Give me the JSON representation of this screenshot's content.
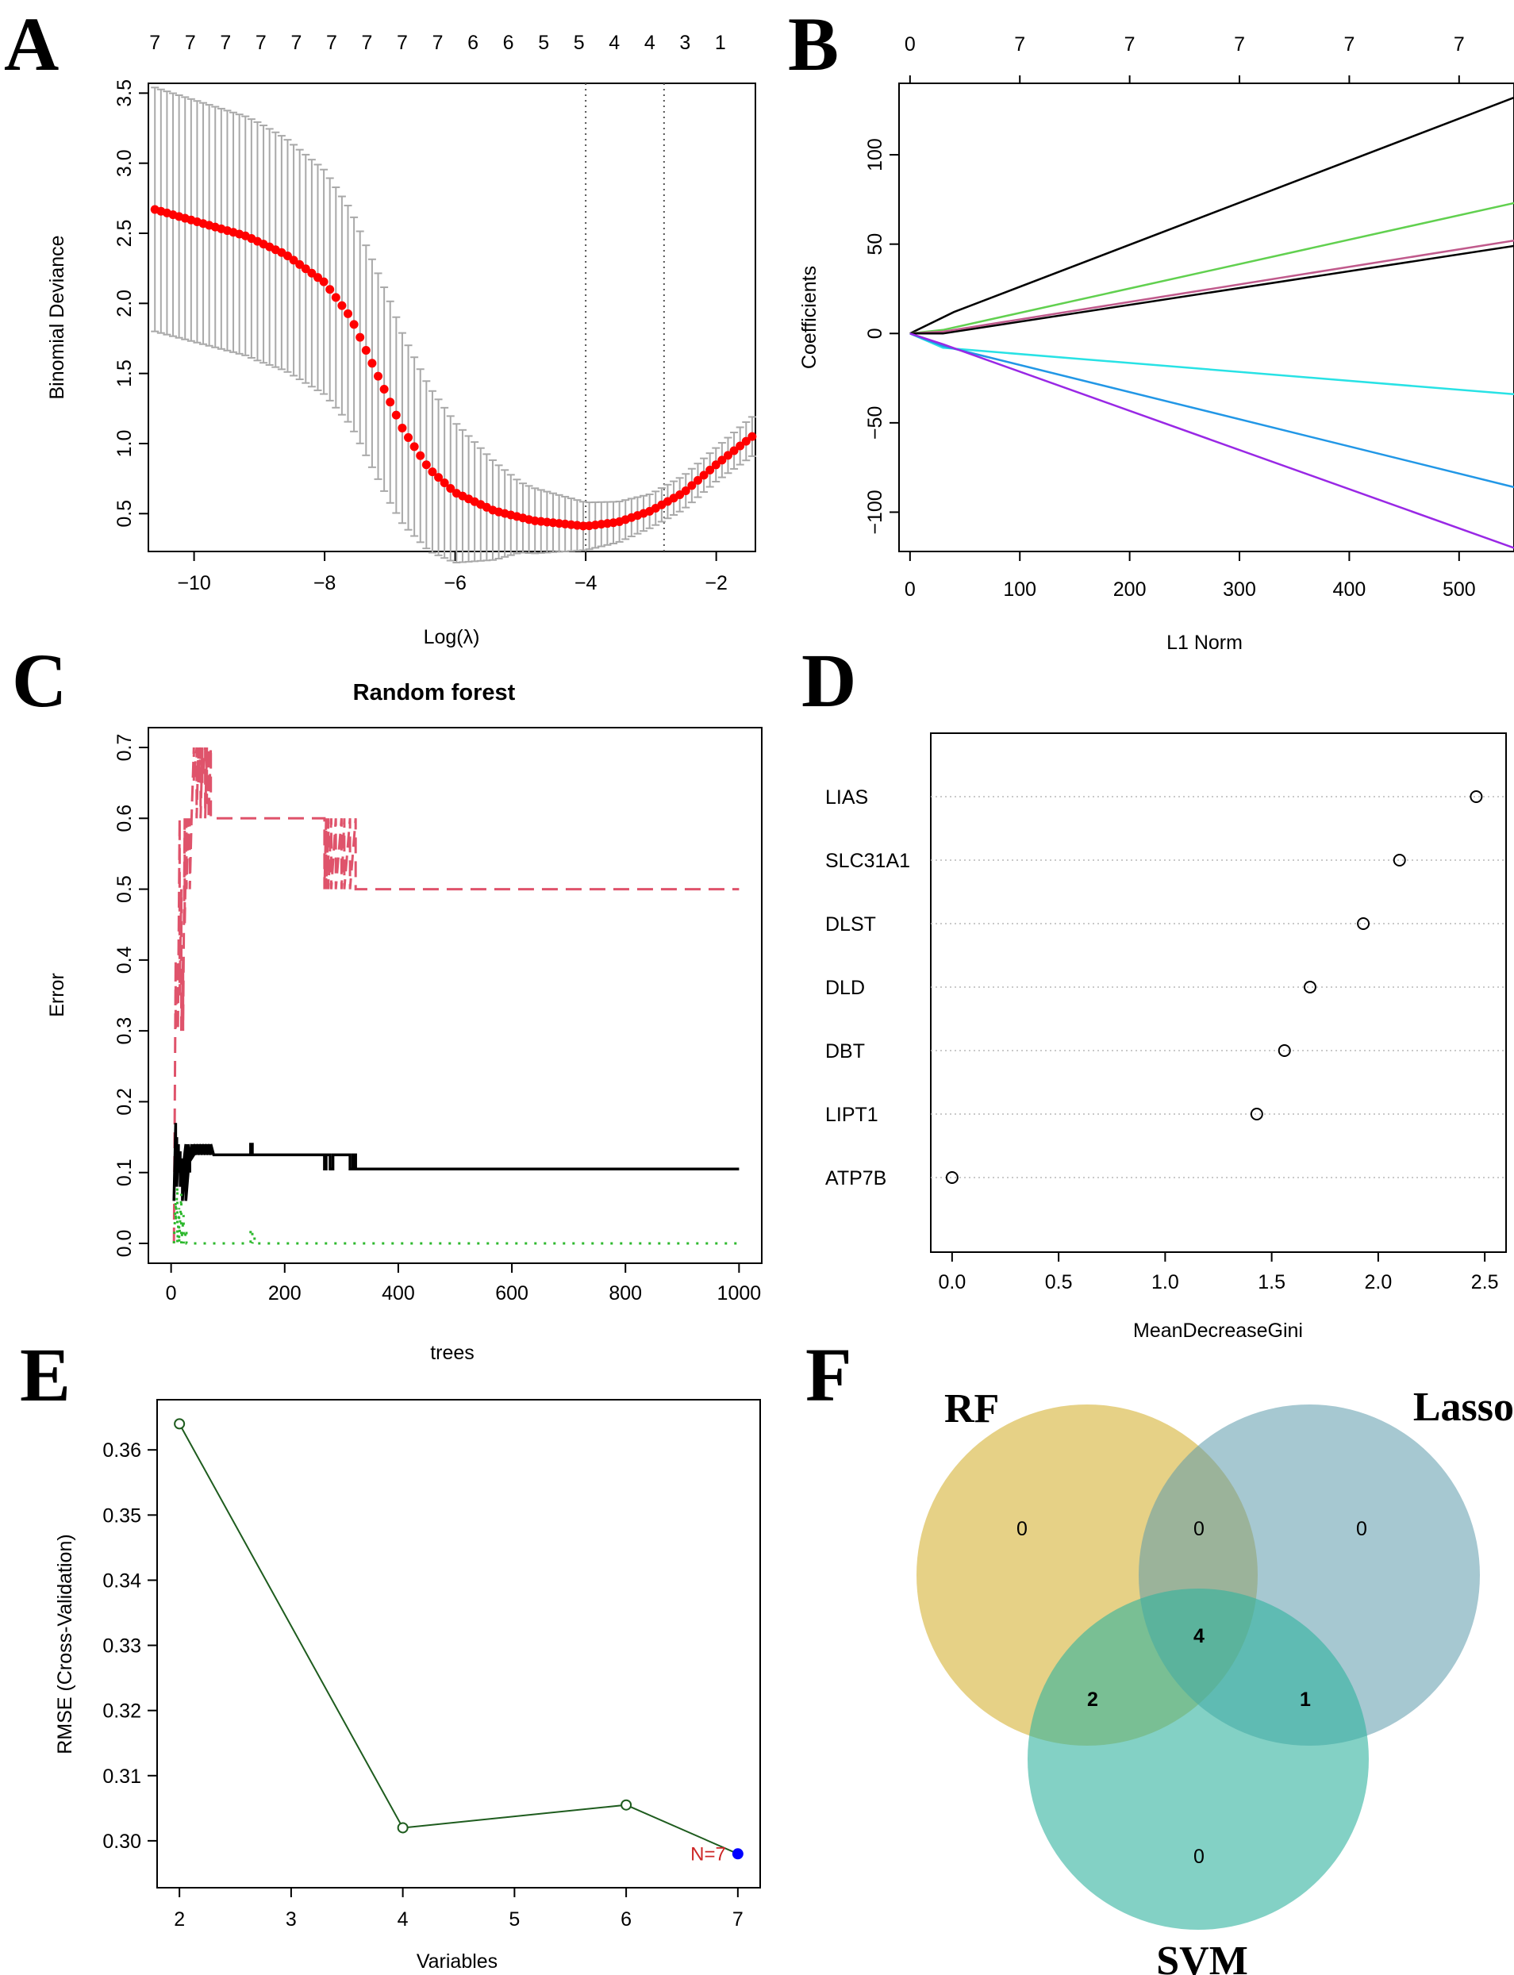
{
  "panel_labels": [
    "A",
    "B",
    "C",
    "D",
    "E",
    "F"
  ],
  "chart_data": [
    {
      "id": "A",
      "type": "scatter",
      "xlabel": "Log(λ)",
      "ylabel": "Binomial Deviance",
      "xlim": [
        -10.7,
        -1.4
      ],
      "ylim": [
        0.23,
        3.57
      ],
      "xticks": [
        -10,
        -8,
        -6,
        -4,
        -2
      ],
      "yticks": [
        0.5,
        1.0,
        1.5,
        2.0,
        2.5,
        3.0,
        3.5
      ],
      "xtick_labels": [
        "−10",
        "−8",
        "−6",
        "−4",
        "−2"
      ],
      "ytick_labels": [
        "0.5",
        "1.0",
        "1.5",
        "2.0",
        "2.5",
        "3.0",
        "3.5"
      ],
      "top_counts": [
        "7",
        "7",
        "7",
        "7",
        "7",
        "7",
        "7",
        "7",
        "7",
        "6",
        "6",
        "5",
        "5",
        "4",
        "4",
        "3",
        "1"
      ],
      "lambda_min": -4.0,
      "lambda_1se": -2.8,
      "x_range": [
        -10.6,
        -1.45
      ],
      "n_points": 100,
      "curve_knots": {
        "x": [
          -10.6,
          -9.2,
          -8.6,
          -8.0,
          -7.6,
          -7.2,
          -6.8,
          -6.4,
          -6.0,
          -5.4,
          -4.8,
          -4.0,
          -3.5,
          -3.0,
          -2.5,
          -2.0,
          -1.45
        ],
        "y": [
          2.67,
          2.48,
          2.35,
          2.15,
          1.9,
          1.5,
          1.1,
          0.82,
          0.65,
          0.52,
          0.45,
          0.41,
          0.44,
          0.52,
          0.65,
          0.85,
          1.05
        ]
      },
      "error_halfwidth_knots": {
        "x": [
          -10.6,
          -9.0,
          -8.0,
          -7.0,
          -6.0,
          -5.0,
          -4.0,
          -3.0,
          -2.0,
          -1.45
        ],
        "y": [
          0.87,
          0.85,
          0.8,
          0.72,
          0.5,
          0.25,
          0.17,
          0.12,
          0.12,
          0.14
        ]
      },
      "colors": {
        "points": "#ff0000",
        "errorbars": "#a9a9a9",
        "vlines": "#555555"
      }
    },
    {
      "id": "B",
      "type": "line",
      "xlabel": "L1 Norm",
      "ylabel": "Coefficients",
      "xlim": [
        -10,
        550
      ],
      "ylim": [
        -122,
        140
      ],
      "xticks": [
        0,
        100,
        200,
        300,
        400,
        500
      ],
      "yticks": [
        -100,
        -50,
        0,
        50,
        100
      ],
      "xtick_labels": [
        "0",
        "100",
        "200",
        "300",
        "400",
        "500"
      ],
      "ytick_labels": [
        "−100",
        "−50",
        "0",
        "50",
        "100"
      ],
      "top_ticks": [
        0,
        100,
        200,
        300,
        400,
        500
      ],
      "top_labels": [
        "0",
        "7",
        "7",
        "7",
        "7",
        "7"
      ],
      "series": [
        {
          "name": "black-upper",
          "color": "#000000",
          "x": [
            0,
            40,
            550
          ],
          "y": [
            0,
            12,
            132
          ]
        },
        {
          "name": "green",
          "color": "#61d04f",
          "x": [
            0,
            30,
            550
          ],
          "y": [
            0,
            2,
            73
          ]
        },
        {
          "name": "magenta",
          "color": "#c05a8c",
          "x": [
            0,
            30,
            550
          ],
          "y": [
            0,
            1,
            52
          ]
        },
        {
          "name": "black-lower",
          "color": "#000000",
          "x": [
            0,
            30,
            550
          ],
          "y": [
            0,
            0,
            49
          ]
        },
        {
          "name": "cyan",
          "color": "#28e2e5",
          "x": [
            0,
            30,
            550
          ],
          "y": [
            0,
            -8,
            -34
          ]
        },
        {
          "name": "blue",
          "color": "#2297e6",
          "x": [
            0,
            30,
            550
          ],
          "y": [
            0,
            -7,
            -86
          ]
        },
        {
          "name": "purple",
          "color": "#9928e5",
          "x": [
            0,
            30,
            550
          ],
          "y": [
            0,
            -6,
            -120
          ]
        }
      ]
    },
    {
      "id": "C",
      "type": "line",
      "title": "Random forest",
      "xlabel": "trees",
      "ylabel": "Error",
      "xlim": [
        -40,
        1040
      ],
      "ylim": [
        -0.028,
        0.728
      ],
      "xticks": [
        0,
        200,
        400,
        600,
        800,
        1000
      ],
      "yticks": [
        0.0,
        0.1,
        0.2,
        0.3,
        0.4,
        0.5,
        0.6,
        0.7
      ],
      "xtick_labels": [
        "0",
        "200",
        "400",
        "600",
        "800",
        "1000"
      ],
      "ytick_labels": [
        "0.0",
        "0.1",
        "0.2",
        "0.3",
        "0.4",
        "0.5",
        "0.6",
        "0.7"
      ],
      "series": [
        {
          "name": "class error (red)",
          "color": "#df536b",
          "dash": "20,10",
          "width": 3,
          "x": [
            5,
            8,
            8,
            12,
            12,
            15,
            15,
            18,
            18,
            21,
            21,
            24,
            24,
            27,
            27,
            30,
            30,
            33,
            33,
            36,
            36,
            40,
            40,
            45,
            45,
            48,
            48,
            52,
            52,
            55,
            55,
            60,
            60,
            63,
            63,
            66,
            66,
            70,
            70,
            75,
            75,
            270,
            270,
            273,
            273,
            277,
            277,
            282,
            282,
            290,
            290,
            300,
            300,
            305,
            305,
            315,
            315,
            325,
            325,
            1000
          ],
          "y": [
            0.0,
            0.4,
            0.3,
            0.4,
            0.3,
            0.6,
            0.35,
            0.5,
            0.3,
            0.4,
            0.3,
            0.6,
            0.45,
            0.6,
            0.5,
            0.6,
            0.55,
            0.6,
            0.5,
            0.6,
            0.6,
            0.7,
            0.65,
            0.7,
            0.6,
            0.7,
            0.65,
            0.7,
            0.6,
            0.7,
            0.65,
            0.7,
            0.6,
            0.7,
            0.62,
            0.7,
            0.6,
            0.7,
            0.6,
            0.6,
            0.6,
            0.6,
            0.5,
            0.6,
            0.5,
            0.6,
            0.5,
            0.6,
            0.5,
            0.6,
            0.5,
            0.6,
            0.5,
            0.6,
            0.5,
            0.6,
            0.5,
            0.6,
            0.5,
            0.5
          ]
        },
        {
          "name": "OOB (black)",
          "color": "#000000",
          "dash": "",
          "width": 3.5,
          "x": [
            5,
            8,
            8,
            10,
            10,
            13,
            13,
            16,
            16,
            20,
            20,
            23,
            23,
            26,
            26,
            30,
            30,
            33,
            33,
            36,
            36,
            40,
            40,
            45,
            45,
            50,
            50,
            55,
            55,
            60,
            60,
            65,
            65,
            70,
            70,
            75,
            75,
            140,
            140,
            143,
            143,
            270,
            270,
            273,
            273,
            280,
            280,
            285,
            285,
            315,
            315,
            320,
            320,
            325,
            325,
            1000
          ],
          "y": [
            0.06,
            0.17,
            0.1,
            0.15,
            0.08,
            0.14,
            0.1,
            0.13,
            0.08,
            0.12,
            0.06,
            0.1,
            0.12,
            0.14,
            0.06,
            0.1,
            0.14,
            0.1,
            0.12,
            0.14,
            0.12,
            0.125,
            0.14,
            0.125,
            0.14,
            0.125,
            0.14,
            0.125,
            0.14,
            0.125,
            0.14,
            0.125,
            0.14,
            0.125,
            0.14,
            0.125,
            0.125,
            0.125,
            0.14,
            0.14,
            0.125,
            0.125,
            0.105,
            0.105,
            0.125,
            0.125,
            0.105,
            0.105,
            0.125,
            0.125,
            0.105,
            0.105,
            0.125,
            0.125,
            0.105,
            0.105
          ]
        },
        {
          "name": "class error (green)",
          "color": "#2db82d",
          "dash": "3,9",
          "width": 3,
          "x": [
            5,
            8,
            8,
            11,
            11,
            14,
            14,
            18,
            18,
            22,
            22,
            27,
            27,
            140,
            140,
            143,
            143,
            147,
            147,
            1000
          ],
          "y": [
            0.0,
            0.06,
            0.03,
            0.08,
            0.0,
            0.05,
            0.0,
            0.07,
            0.0,
            0.04,
            0.0,
            0.02,
            0.0,
            0.0,
            0.02,
            0.02,
            0.0,
            0.01,
            0.0,
            0.0
          ]
        }
      ]
    },
    {
      "id": "D",
      "type": "scatter",
      "xlabel": "MeanDecreaseGini",
      "xlim": [
        -0.1,
        2.6
      ],
      "xticks": [
        0.0,
        0.5,
        1.0,
        1.5,
        2.0,
        2.5
      ],
      "xtick_labels": [
        "0.0",
        "0.5",
        "1.0",
        "1.5",
        "2.0",
        "2.5"
      ],
      "categories": [
        "LIAS",
        "SLC31A1",
        "DLST",
        "DLD",
        "DBT",
        "LIPT1",
        "ATP7B"
      ],
      "values": [
        2.46,
        2.1,
        1.93,
        1.68,
        1.56,
        1.43,
        0.0
      ]
    },
    {
      "id": "E",
      "type": "line",
      "xlabel": "Variables",
      "ylabel": "RMSE (Cross-Validation)",
      "xlim": [
        1.8,
        7.2
      ],
      "ylim": [
        0.2928,
        0.3677
      ],
      "xticks": [
        2,
        3,
        4,
        5,
        6,
        7
      ],
      "yticks": [
        0.3,
        0.31,
        0.32,
        0.33,
        0.34,
        0.35,
        0.36
      ],
      "xtick_labels": [
        "2",
        "3",
        "4",
        "5",
        "6",
        "7"
      ],
      "ytick_labels": [
        "0.30",
        "0.31",
        "0.32",
        "0.33",
        "0.34",
        "0.35",
        "0.36"
      ],
      "x": [
        2,
        4,
        6,
        7
      ],
      "y": [
        0.364,
        0.302,
        0.3055,
        0.298
      ],
      "best": {
        "x": 7,
        "y": 0.298,
        "label": "N=7"
      },
      "colors": {
        "line": "#1e5c1e",
        "best": "#0000ff",
        "best_label": "#cd2626"
      }
    },
    {
      "id": "F",
      "type": "venn",
      "sets": [
        "RF",
        "Lasso",
        "SVM"
      ],
      "regions": {
        "RF_only": "0",
        "Lasso_only": "0",
        "SVM_only": "0",
        "RF_Lasso": "0",
        "RF_SVM": "2",
        "Lasso_SVM": "1",
        "all": "4"
      },
      "colors": {
        "RF": "#d9b845",
        "Lasso": "#5c9aab",
        "SVM": "#30b39e"
      }
    }
  ]
}
